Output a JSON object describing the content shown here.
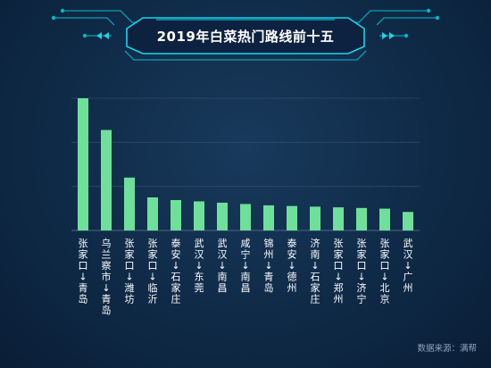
{
  "title": "2019年白菜热门路线前十五",
  "source": "数据来源：满帮",
  "colors": {
    "bar": "#6ee09a",
    "background": "#0f2a47",
    "grid": "#2e4a68",
    "accent": "#00e5ff"
  },
  "chart_data": {
    "type": "bar",
    "title": "2019年白菜热门路线前十五",
    "xlabel": "",
    "ylabel": "",
    "grid": true,
    "categories": [
      "张家口↓青岛",
      "乌兰察市↓青岛",
      "张家口↓潍坊",
      "张家口↓临沂",
      "泰安↓石家庄",
      "武汉↓东莞",
      "武汉↓南昌",
      "咸宁↓南昌",
      "锦州↓青岛",
      "泰安↓德州",
      "济南↓石家庄",
      "张家口↓郑州",
      "张家口↓济宁",
      "张家口↓北京",
      "武汉↓广州"
    ],
    "values": [
      100,
      76,
      40,
      25,
      23,
      22,
      21,
      20,
      19,
      18.5,
      18,
      17.5,
      17,
      16.5,
      14
    ],
    "ylim": [
      0,
      100
    ]
  }
}
